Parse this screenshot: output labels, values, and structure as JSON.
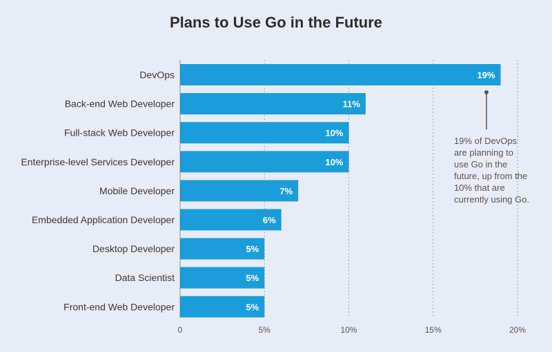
{
  "chart_data": {
    "type": "bar",
    "orientation": "horizontal",
    "title": "Plans to Use Go in the Future",
    "categories": [
      "DevOps",
      "Back-end Web Developer",
      "Full-stack Web Developer",
      "Enterprise-level Services Developer",
      "Mobile Developer",
      "Embedded Application Developer",
      "Desktop Developer",
      "Data Scientist",
      "Front-end Web Developer"
    ],
    "values": [
      19,
      11,
      10,
      10,
      7,
      6,
      5,
      5,
      5
    ],
    "value_labels": [
      "19%",
      "11%",
      "10%",
      "10%",
      "7%",
      "6%",
      "5%",
      "5%",
      "5%"
    ],
    "xlim": [
      0,
      20
    ],
    "xticks": [
      0,
      5,
      10,
      15,
      20
    ],
    "xtick_labels": [
      "0",
      "5%",
      "10%",
      "15%",
      "20%"
    ],
    "grid": true,
    "bar_color": "#1b9dd9",
    "annotation": {
      "target": "DevOps",
      "text": "19% of DevOps are planning to use Go in the future, up from the 10% that are currently using Go."
    }
  }
}
